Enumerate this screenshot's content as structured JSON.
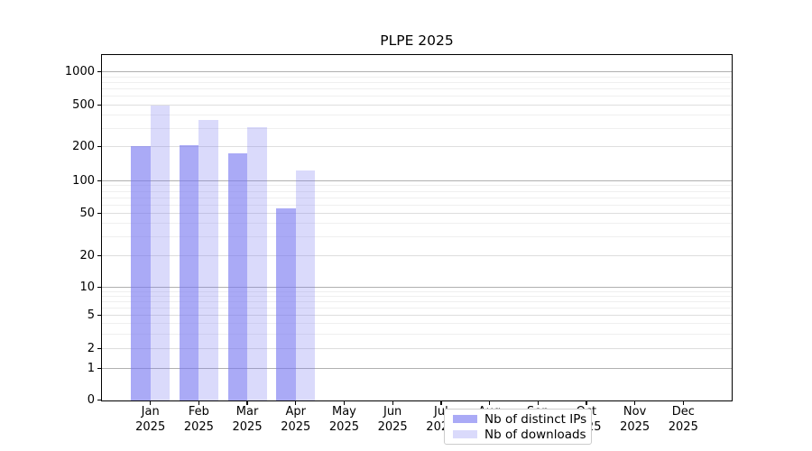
{
  "chart_data": {
    "type": "bar",
    "title": "PLPE 2025",
    "xlabel": "",
    "ylabel": "",
    "y_scale": "symlog",
    "y_ticks": [
      0,
      1,
      2,
      5,
      10,
      20,
      50,
      100,
      200,
      500,
      1000
    ],
    "y_minor_ticks": [
      3,
      4,
      6,
      7,
      8,
      9,
      30,
      40,
      60,
      70,
      80,
      90,
      300,
      400,
      600,
      700,
      800,
      900
    ],
    "ylim": [
      0,
      1400
    ],
    "grid": true,
    "categories": [
      "Jan",
      "Feb",
      "Mar",
      "Apr",
      "May",
      "Jun",
      "Jul",
      "Aug",
      "Sep",
      "Oct",
      "Nov",
      "Dec"
    ],
    "category_year": "2025",
    "legend_position": "lower center",
    "series": [
      {
        "name": "Nb of distinct IPs",
        "color": "rgba(118,118,240,0.62)",
        "values": [
          203,
          207,
          175,
          55,
          null,
          null,
          null,
          null,
          null,
          null,
          null,
          null
        ]
      },
      {
        "name": "Nb of downloads",
        "color": "rgba(118,118,240,0.27)",
        "values": [
          487,
          356,
          303,
          123,
          null,
          null,
          null,
          null,
          null,
          null,
          null,
          null
        ]
      }
    ]
  },
  "colors": {
    "bar_base": "#7676f0",
    "grid_major": "#b0b0b0",
    "grid_labeled": "#dedede",
    "grid_minor": "#efefef",
    "axis": "#000000",
    "background": "#ffffff"
  }
}
